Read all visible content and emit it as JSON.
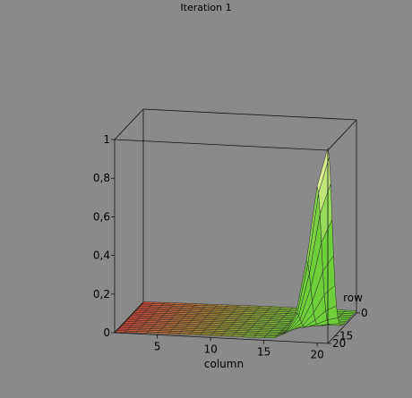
{
  "title": "Iteration 1",
  "chart_data": {
    "type": "surface",
    "title": "Iteration 1",
    "xlabel": "column",
    "ylabel": "row",
    "zlabel": "",
    "x_range": [
      1,
      21
    ],
    "y_range": [
      0,
      20
    ],
    "z_range": [
      0,
      1
    ],
    "x_ticks": [
      "5",
      "10",
      "15",
      "20"
    ],
    "y_ticks": [
      "0",
      "15",
      "20"
    ],
    "z_ticks": [
      "0",
      "0,2",
      "0,4",
      "0,6",
      "0,8",
      "1"
    ],
    "peak": {
      "column": 21,
      "row": 0,
      "value": 1
    },
    "background": "flat near 0 with a sharp peak rising to 1 at the high-column, low-row corner",
    "grid": false,
    "colors": {
      "low": "#d24a3c",
      "mid": "#6fcf3a",
      "high": "#f4f4a6",
      "background": "#8a8a8a"
    }
  }
}
